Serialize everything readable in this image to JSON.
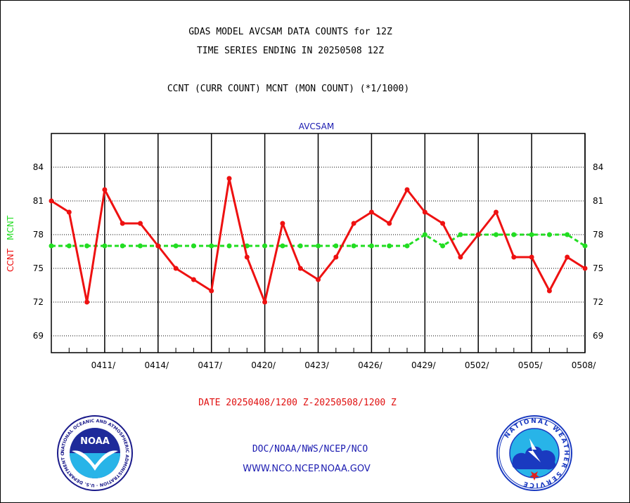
{
  "header": {
    "title_line1": "GDAS MODEL AVCSAM DATA COUNTS for 12Z",
    "title_line2": "TIME SERIES ENDING IN 20250508 12Z",
    "subtitle": "CCNT (CURR COUNT) MCNT (MON COUNT) (*1/1000)"
  },
  "footer": {
    "date_range": "DATE 20250408/1200 Z-20250508/1200 Z",
    "agency": "DOC/NOAA/NWS/NCEP/NCO",
    "website": "WWW.NCO.NCEP.NOAA.GOV"
  },
  "logos": {
    "noaa": {
      "center_text": "NOAA",
      "ring_text": "NATIONAL OCEANIC AND ATMOSPHERIC ADMINISTRATION · U.S. DEPARTMENT OF COMMERCE"
    },
    "nws": {
      "ring_text": "NATIONAL WEATHER SERVICE"
    }
  },
  "colors": {
    "ccnt": "#ee1111",
    "mcnt": "#22dd22",
    "panel_label": "#1a1ab0",
    "date_text": "#e01010"
  },
  "chart_data": {
    "type": "line",
    "panel_label": "AVCSAM",
    "ylabel_left": "CCNT",
    "ylabel_right": "MCNT",
    "ylim": [
      67.5,
      87
    ],
    "yticks": [
      69,
      72,
      75,
      78,
      81,
      84
    ],
    "x_start": "2025-04-08",
    "x_end": "2025-05-08",
    "x_tick_labels": [
      "0411/",
      "0414/",
      "0417/",
      "0420/",
      "0423/",
      "0426/",
      "0429/",
      "0502/",
      "0505/",
      "0508/"
    ],
    "x_tick_dates": [
      "2025-04-11",
      "2025-04-14",
      "2025-04-17",
      "2025-04-20",
      "2025-04-23",
      "2025-04-26",
      "2025-04-29",
      "2025-05-02",
      "2025-05-05",
      "2025-05-08"
    ],
    "grid": true,
    "series": [
      {
        "name": "CCNT",
        "color": "#ee1111",
        "dates": [
          "2025-04-08",
          "2025-04-09",
          "2025-04-10",
          "2025-04-11",
          "2025-04-12",
          "2025-04-13",
          "2025-04-14",
          "2025-04-15",
          "2025-04-16",
          "2025-04-17",
          "2025-04-18",
          "2025-04-19",
          "2025-04-20",
          "2025-04-21",
          "2025-04-22",
          "2025-04-23",
          "2025-04-24",
          "2025-04-25",
          "2025-04-26",
          "2025-04-27",
          "2025-04-28",
          "2025-04-29",
          "2025-04-30",
          "2025-05-01",
          "2025-05-02",
          "2025-05-03",
          "2025-05-04",
          "2025-05-05",
          "2025-05-06",
          "2025-05-07",
          "2025-05-08"
        ],
        "values": [
          81,
          80,
          72,
          82,
          79,
          79,
          77,
          75,
          74,
          73,
          83,
          76,
          72,
          79,
          75,
          74,
          76,
          79,
          80,
          79,
          82,
          80,
          79,
          76,
          78,
          80,
          76,
          76,
          73,
          76,
          75
        ]
      },
      {
        "name": "MCNT",
        "color": "#22dd22",
        "dates": [
          "2025-04-08",
          "2025-04-09",
          "2025-04-10",
          "2025-04-11",
          "2025-04-12",
          "2025-04-13",
          "2025-04-14",
          "2025-04-15",
          "2025-04-16",
          "2025-04-17",
          "2025-04-18",
          "2025-04-19",
          "2025-04-20",
          "2025-04-21",
          "2025-04-22",
          "2025-04-23",
          "2025-04-24",
          "2025-04-25",
          "2025-04-26",
          "2025-04-27",
          "2025-04-28",
          "2025-04-29",
          "2025-04-30",
          "2025-05-01",
          "2025-05-02",
          "2025-05-03",
          "2025-05-04",
          "2025-05-05",
          "2025-05-06",
          "2025-05-07",
          "2025-05-08"
        ],
        "values": [
          77,
          77,
          77,
          77,
          77,
          77,
          77,
          77,
          77,
          77,
          77,
          77,
          77,
          77,
          77,
          77,
          77,
          77,
          77,
          77,
          77,
          78,
          77,
          78,
          78,
          78,
          78,
          78,
          78,
          78,
          77
        ]
      }
    ]
  }
}
